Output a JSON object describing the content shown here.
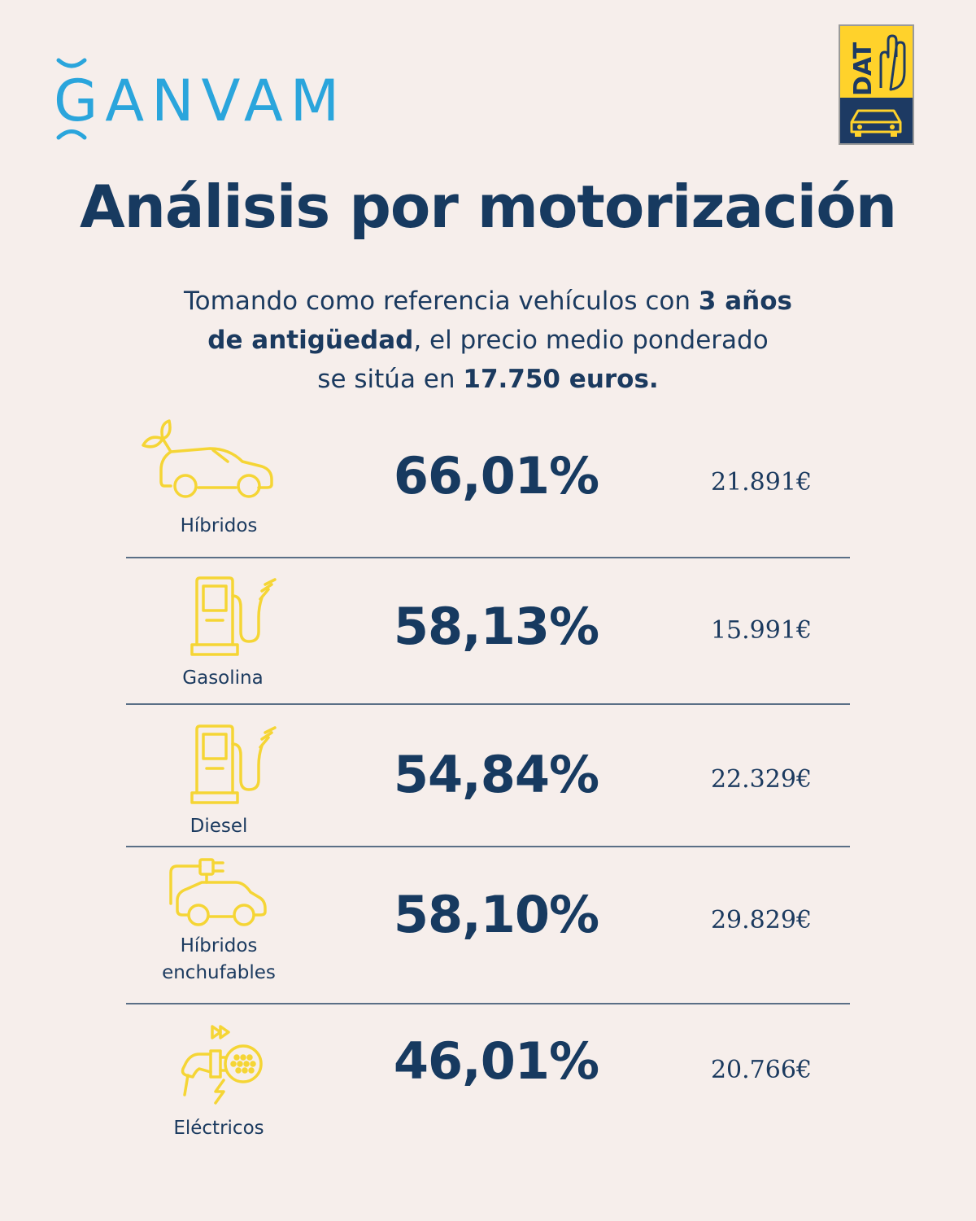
{
  "brand": {
    "ganvam": "GANVAM",
    "dat": "DAT"
  },
  "title": "Análisis por motorización",
  "subtitle": {
    "line1_pre": "Tomando como referencia vehículos con ",
    "line1_bold": "3 años",
    "line2_bold": "de antigüedad",
    "line2_post": ", el precio medio ponderado",
    "line3_pre": "se sitúa en ",
    "line3_bold": "17.750 euros."
  },
  "rows": [
    {
      "label": "Híbridos",
      "percent": "66,01%",
      "price": "21.891€",
      "icon": "hybrid-car-leaf-icon"
    },
    {
      "label": "Gasolina",
      "percent": "58,13%",
      "price": "15.991€",
      "icon": "fuel-pump-icon"
    },
    {
      "label": "Diesel",
      "percent": "54,84%",
      "price": "22.329€",
      "icon": "fuel-pump-icon"
    },
    {
      "label_line1": "Híbridos",
      "label_line2": "enchufables",
      "percent": "58,10%",
      "price": "29.829€",
      "icon": "plug-in-hybrid-car-icon"
    },
    {
      "label": "Eléctricos",
      "percent": "46,01%",
      "price": "20.766€",
      "icon": "ev-charger-icon"
    }
  ],
  "colors": {
    "background": "#f6eeeb",
    "navy": "#173a60",
    "icon_yellow": "#f5d535",
    "ganvam_blue": "#2aa5dc",
    "dat_yellow": "#ffd22b",
    "dat_navy": "#1d3a63"
  }
}
